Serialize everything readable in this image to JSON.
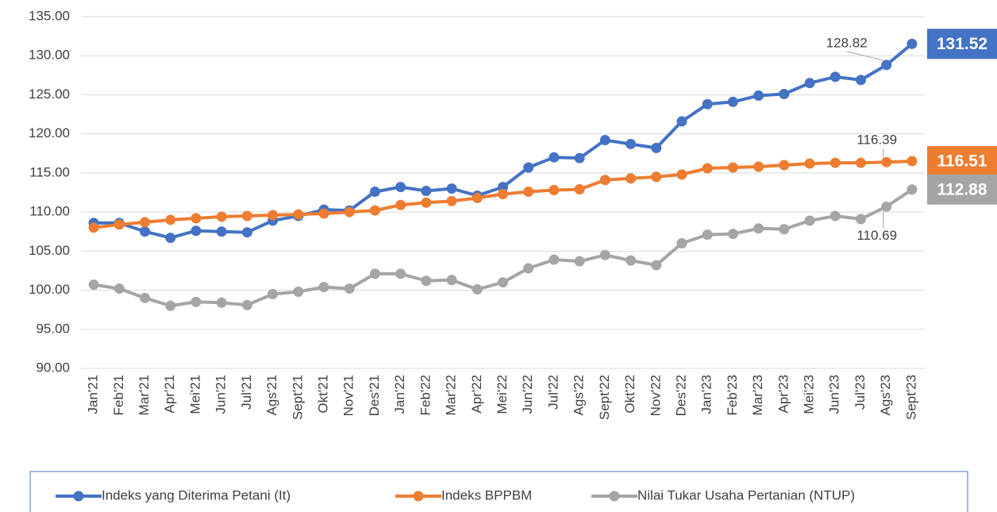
{
  "chart_data": {
    "type": "line",
    "categories": [
      "Jan'21",
      "Feb'21",
      "Mar'21",
      "Apr'21",
      "Mei'21",
      "Jun'21",
      "Jul'21",
      "Ags'21",
      "Sept'21",
      "Okt'21",
      "Nov'21",
      "Des'21",
      "Jan'22",
      "Feb'22",
      "Mar'22",
      "Apr'22",
      "Mei'22",
      "Jun'22",
      "Jul'22",
      "Ags'22",
      "Sept'22",
      "Okt'22",
      "Nov'22",
      "Des'22",
      "Jan'23",
      "Feb'23",
      "Mar'23",
      "Apr'23",
      "Mei'23",
      "Jun'23",
      "Jul'23",
      "Ags'23",
      "Sept'23"
    ],
    "series": [
      {
        "name": "Indeks yang Diterima Petani (It)",
        "color": "#4472c4",
        "values": [
          108.6,
          108.6,
          107.5,
          106.7,
          107.6,
          107.5,
          107.4,
          108.9,
          109.5,
          110.3,
          110.2,
          112.6,
          113.2,
          112.7,
          113.0,
          112.1,
          113.2,
          115.7,
          117.0,
          116.9,
          119.2,
          118.7,
          118.2,
          121.6,
          123.8,
          124.1,
          124.9,
          125.1,
          126.5,
          127.3,
          126.9,
          128.82,
          131.52
        ]
      },
      {
        "name": "Indeks BPPBM",
        "color": "#ed7d31",
        "values": [
          108.0,
          108.4,
          108.7,
          109.0,
          109.2,
          109.4,
          109.5,
          109.6,
          109.7,
          109.8,
          110.0,
          110.2,
          110.9,
          111.2,
          111.4,
          111.8,
          112.3,
          112.6,
          112.8,
          112.9,
          114.1,
          114.3,
          114.5,
          114.8,
          115.6,
          115.7,
          115.8,
          116.0,
          116.2,
          116.3,
          116.3,
          116.39,
          116.51
        ]
      },
      {
        "name": "Nilai Tukar Usaha Pertanian (NTUP)",
        "color": "#a5a5a5",
        "values": [
          100.7,
          100.2,
          99.0,
          98.0,
          98.5,
          98.4,
          98.1,
          99.5,
          99.8,
          100.4,
          100.2,
          102.1,
          102.1,
          101.2,
          101.3,
          100.1,
          101.0,
          102.8,
          103.9,
          103.7,
          104.5,
          103.8,
          103.2,
          106.0,
          107.1,
          107.2,
          107.9,
          107.8,
          108.9,
          109.5,
          109.1,
          110.69,
          112.88
        ]
      }
    ],
    "ylim": [
      90,
      135
    ],
    "yticks": [
      {
        "value": 90,
        "label": "90.00"
      },
      {
        "value": 95,
        "label": "95.00"
      },
      {
        "value": 100,
        "label": "100.00"
      },
      {
        "value": 105,
        "label": "105.00"
      },
      {
        "value": 110,
        "label": "110.00"
      },
      {
        "value": 115,
        "label": "115.00"
      },
      {
        "value": 120,
        "label": "120.00"
      },
      {
        "value": 125,
        "label": "125.00"
      },
      {
        "value": 130,
        "label": "130.00"
      },
      {
        "value": 135,
        "label": "135.00"
      }
    ],
    "grid": true,
    "legend": "bottom"
  }
}
